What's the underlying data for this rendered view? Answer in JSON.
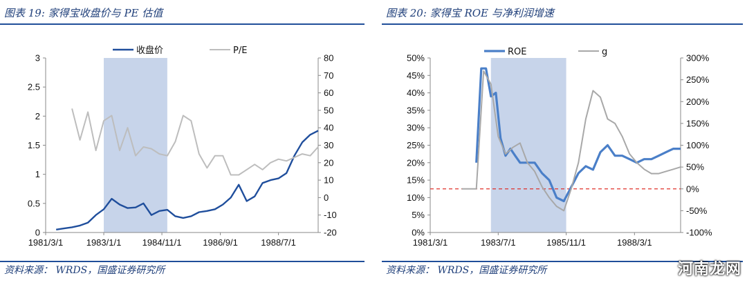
{
  "charts": {
    "left": {
      "fig_title": "图表 19:  家得宝收盘价与 PE 估值",
      "source": "资料来源：  WRDS，国盛证券研究所"
    },
    "right": {
      "fig_title": "图表 20:  家得宝 ROE 与净利润增速",
      "source": "资料来源：  WRDS，国盛证券研究所"
    }
  },
  "watermark": "河南龙网",
  "colors": {
    "dark_blue": "#1f4e9c",
    "mid_blue": "#4a7fc8",
    "gray": "#bdbdbd",
    "shade": "#c7d4ea",
    "red": "#e0302a"
  },
  "chart_data": [
    {
      "type": "line",
      "title": "家得宝收盘价与 PE 估值",
      "x_range": [
        1981.17,
        1989.75
      ],
      "x_ticks": [
        1981.17,
        1983.0,
        1984.83,
        1986.67,
        1988.5
      ],
      "x_tick_labels": [
        "1981/3/1",
        "1983/1/1",
        "1984/11/1",
        "1986/9/1",
        "1988/7/1"
      ],
      "y_left": {
        "range": [
          0,
          3
        ],
        "ticks": [
          0,
          0.5,
          1,
          1.5,
          2,
          2.5,
          3
        ],
        "tick_labels": [
          "0",
          "0.5",
          "1",
          "1.5",
          "2",
          "2.5",
          "3"
        ]
      },
      "y_right": {
        "range": [
          -20,
          80
        ],
        "ticks": [
          -20,
          -10,
          0,
          10,
          20,
          30,
          40,
          50,
          60,
          70,
          80
        ],
        "tick_labels": [
          "-20",
          "-10",
          "0",
          "10",
          "20",
          "30",
          "40",
          "50",
          "60",
          "70",
          "80"
        ]
      },
      "shaded_x": [
        1983.0,
        1985.0
      ],
      "series": [
        {
          "name": "收盘价",
          "axis": "left",
          "color": "#1f4e9c",
          "x": [
            1981.5,
            1981.75,
            1982.0,
            1982.25,
            1982.5,
            1982.75,
            1983.0,
            1983.25,
            1983.5,
            1983.75,
            1984.0,
            1984.25,
            1984.5,
            1984.75,
            1985.0,
            1985.25,
            1985.5,
            1985.75,
            1986.0,
            1986.25,
            1986.5,
            1986.75,
            1987.0,
            1987.25,
            1987.5,
            1987.75,
            1988.0,
            1988.25,
            1988.5,
            1988.75,
            1989.0,
            1989.25,
            1989.5,
            1989.75
          ],
          "y": [
            0.05,
            0.07,
            0.09,
            0.12,
            0.17,
            0.3,
            0.4,
            0.58,
            0.48,
            0.42,
            0.43,
            0.5,
            0.3,
            0.37,
            0.39,
            0.28,
            0.25,
            0.28,
            0.35,
            0.37,
            0.4,
            0.48,
            0.6,
            0.82,
            0.54,
            0.62,
            0.85,
            0.9,
            0.93,
            1.02,
            1.32,
            1.55,
            1.68,
            1.75
          ]
        },
        {
          "name": "P/E",
          "axis": "right",
          "color": "#bdbdbd",
          "x": [
            1982.0,
            1982.25,
            1982.5,
            1982.75,
            1983.0,
            1983.25,
            1983.5,
            1983.75,
            1984.0,
            1984.25,
            1984.5,
            1984.75,
            1985.0,
            1985.25,
            1985.5,
            1985.75,
            1986.0,
            1986.25,
            1986.5,
            1986.75,
            1987.0,
            1987.25,
            1987.5,
            1987.75,
            1988.0,
            1988.25,
            1988.5,
            1988.75,
            1989.0,
            1989.25,
            1989.5,
            1989.75
          ],
          "y": [
            51,
            33,
            49,
            27,
            44,
            47,
            27,
            40,
            24,
            29,
            28,
            25,
            24,
            32,
            47,
            44,
            25,
            17,
            24,
            24,
            13,
            13,
            16,
            19,
            16,
            20,
            22,
            21,
            23,
            25,
            24,
            29
          ]
        }
      ],
      "legend": [
        "收盘价",
        "P/E"
      ]
    },
    {
      "type": "line",
      "title": "家得宝 ROE 与净利润增速",
      "x_range": [
        1981.17,
        1989.75
      ],
      "x_ticks": [
        1981.17,
        1983.5,
        1985.83,
        1988.17
      ],
      "x_tick_labels": [
        "1981/3/1",
        "1983/7/1",
        "1985/11/1",
        "1988/3/1"
      ],
      "y_left": {
        "range": [
          0,
          50
        ],
        "ticks": [
          0,
          5,
          10,
          15,
          20,
          25,
          30,
          35,
          40,
          45,
          50
        ],
        "tick_labels": [
          "0%",
          "5%",
          "10%",
          "15%",
          "20%",
          "25%",
          "30%",
          "35%",
          "40%",
          "45%",
          "50%"
        ]
      },
      "y_right": {
        "range": [
          -100,
          300
        ],
        "ticks": [
          -100,
          -50,
          0,
          50,
          100,
          150,
          200,
          250,
          300
        ],
        "tick_labels": [
          "-100%",
          "-50%",
          "0%",
          "50%",
          "100%",
          "150%",
          "200%",
          "250%",
          "300%"
        ]
      },
      "shaded_x": [
        1983.25,
        1985.83
      ],
      "reference_line": {
        "axis": "right",
        "value": 0,
        "style": "dashed",
        "color": "#e0302a"
      },
      "series": [
        {
          "name": "ROE",
          "axis": "left",
          "color": "#4a7fc8",
          "x": [
            1982.75,
            1982.92,
            1983.08,
            1983.25,
            1983.42,
            1983.58,
            1983.75,
            1983.92,
            1984.08,
            1984.25,
            1984.5,
            1984.75,
            1985.0,
            1985.25,
            1985.5,
            1985.75,
            1986.0,
            1986.25,
            1986.5,
            1986.75,
            1987.0,
            1987.25,
            1987.5,
            1987.75,
            1988.0,
            1988.25,
            1988.5,
            1988.75,
            1989.0,
            1989.25,
            1989.5,
            1989.75
          ],
          "y": [
            20,
            47,
            47,
            39,
            40,
            27,
            22,
            24,
            22,
            20,
            20,
            20,
            17,
            15,
            10,
            9,
            13,
            17,
            19,
            18,
            23,
            25,
            22,
            22,
            21,
            20,
            21,
            21,
            22,
            23,
            24,
            24
          ]
        },
        {
          "name": "g",
          "axis": "right",
          "color": "#a8a8a8",
          "x": [
            1982.25,
            1982.75,
            1983.0,
            1983.25,
            1983.5,
            1983.75,
            1984.0,
            1984.25,
            1984.5,
            1984.75,
            1985.0,
            1985.25,
            1985.5,
            1985.75,
            1986.0,
            1986.25,
            1986.5,
            1986.75,
            1987.0,
            1987.25,
            1987.5,
            1987.75,
            1988.0,
            1988.25,
            1988.5,
            1988.75,
            1989.0,
            1989.25,
            1989.5,
            1989.75
          ],
          "y": [
            0,
            0,
            270,
            240,
            120,
            80,
            95,
            105,
            60,
            40,
            5,
            -20,
            -40,
            -50,
            0,
            60,
            160,
            225,
            210,
            160,
            150,
            120,
            80,
            60,
            45,
            35,
            35,
            40,
            45,
            50
          ]
        }
      ],
      "legend": [
        "ROE",
        "g"
      ]
    }
  ]
}
